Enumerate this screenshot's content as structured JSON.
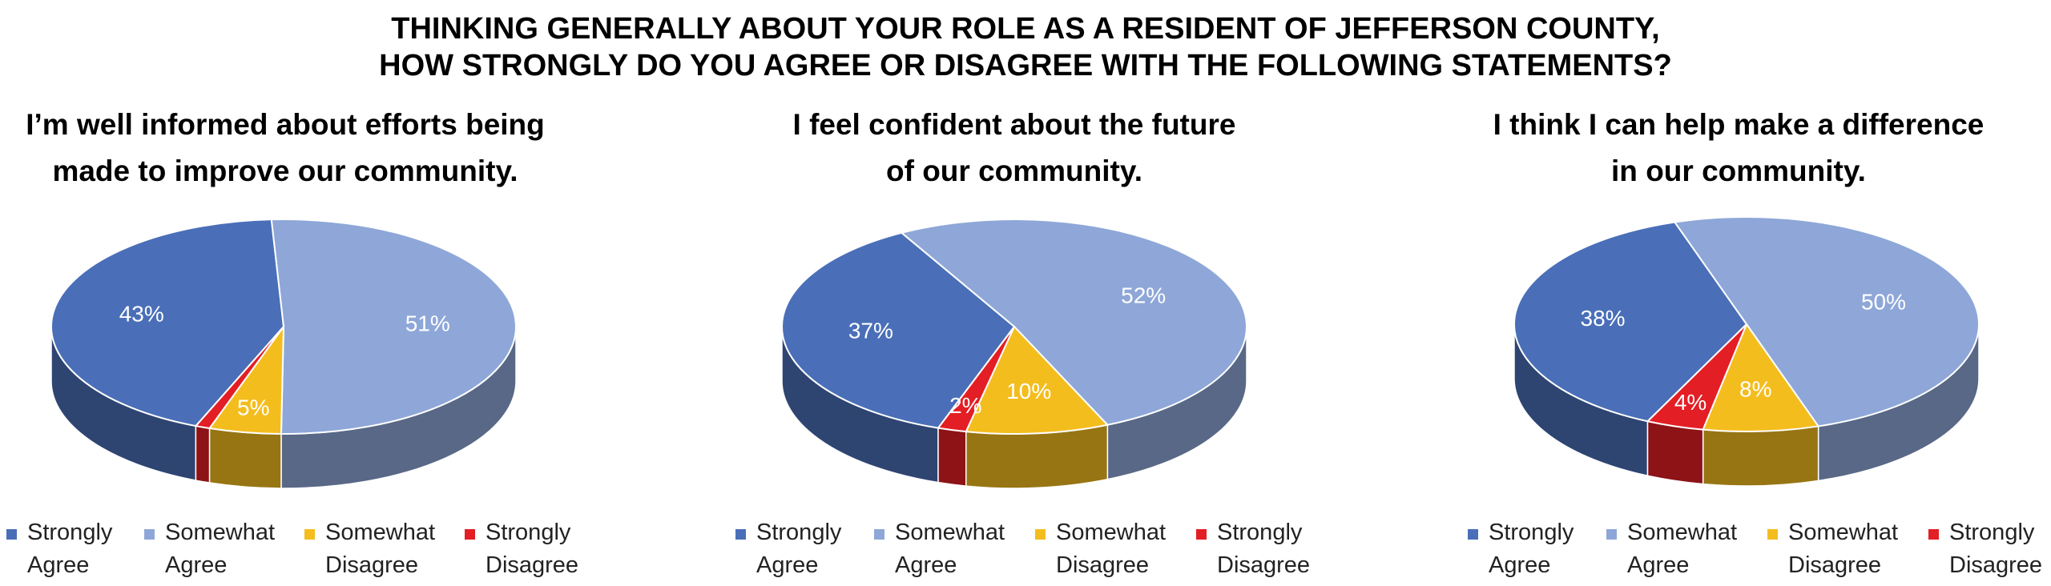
{
  "title": [
    "THINKING GENERALLY ABOUT YOUR ROLE AS A RESIDENT OF JEFFERSON COUNTY,",
    "HOW STRONGLY DO YOU AGREE OR DISAGREE WITH THE FOLLOWING STATEMENTS?"
  ],
  "chart_data": [
    {
      "type": "pie",
      "title": [
        "I’m well informed about efforts being",
        "made to improve our community."
      ],
      "categories": [
        "Strongly Agree",
        "Somewhat Agree",
        "Somewhat Disagree",
        "Strongly Disagree"
      ],
      "values": [
        43,
        51,
        5,
        1
      ],
      "value_labels": [
        "43%",
        "51%",
        "5%",
        null
      ],
      "colors": [
        "#4a6fb8",
        "#8ea7d8",
        "#f4bd1e",
        "#e31e24"
      ]
    },
    {
      "type": "pie",
      "title": [
        "I feel confident about the future",
        "of our community."
      ],
      "categories": [
        "Strongly Agree",
        "Somewhat Agree",
        "Somewhat Disagree",
        "Strongly Disagree"
      ],
      "values": [
        37,
        52,
        10,
        2
      ],
      "value_labels": [
        "37%",
        "52%",
        "10%",
        "2%"
      ],
      "colors": [
        "#4a6fb8",
        "#8ea7d8",
        "#f4bd1e",
        "#e31e24"
      ]
    },
    {
      "type": "pie",
      "title": [
        "I think I can help make a difference",
        "in our community."
      ],
      "categories": [
        "Strongly Agree",
        "Somewhat Agree",
        "Somewhat Disagree",
        "Strongly Disagree"
      ],
      "values": [
        38,
        50,
        8,
        4
      ],
      "value_labels": [
        "38%",
        "50%",
        "8%",
        "4%"
      ],
      "colors": [
        "#4a6fb8",
        "#8ea7d8",
        "#f4bd1e",
        "#e31e24"
      ]
    }
  ]
}
